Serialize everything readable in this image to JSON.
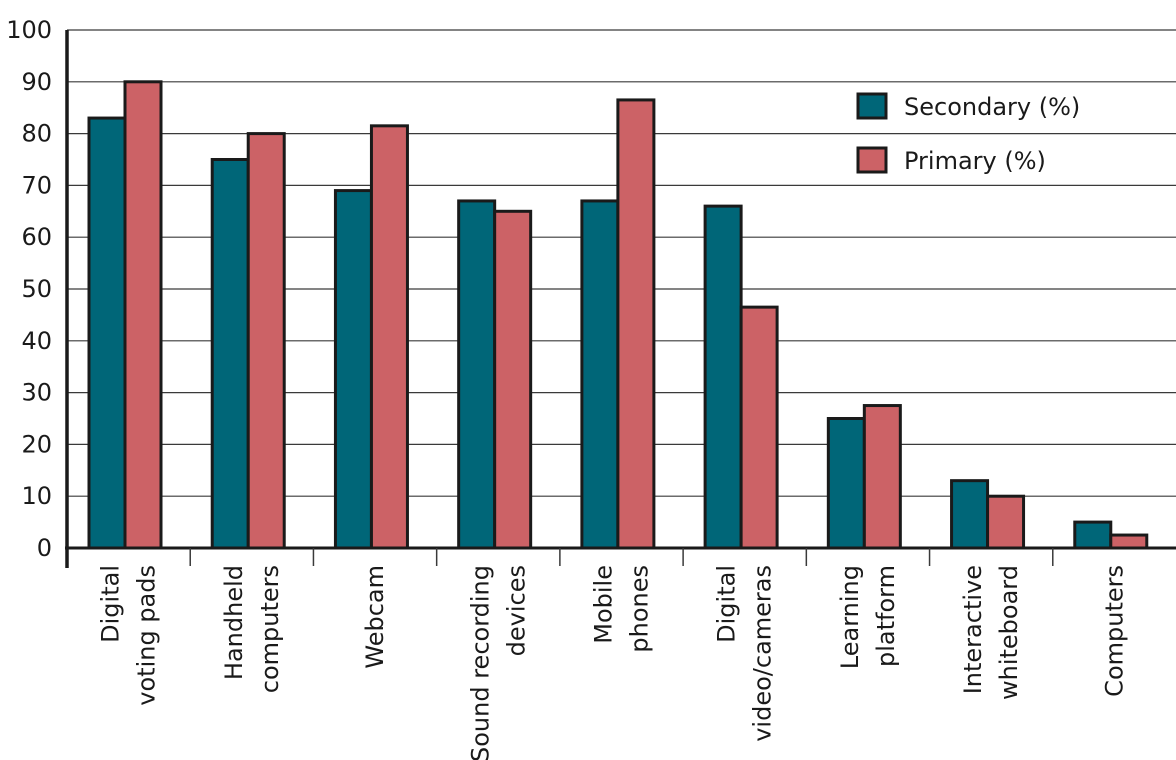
{
  "chart_data": {
    "type": "bar",
    "title": "",
    "xlabel": "",
    "ylabel": "",
    "ylim": [
      0,
      100
    ],
    "yticks": [
      0,
      10,
      20,
      30,
      40,
      50,
      60,
      70,
      80,
      90,
      100
    ],
    "grid": true,
    "legend_position": "top-right",
    "categories": [
      [
        "Digital",
        "voting pads"
      ],
      [
        "Handheld",
        "computers"
      ],
      [
        "Webcam"
      ],
      [
        "Sound recording",
        "devices"
      ],
      [
        "Mobile",
        "phones"
      ],
      [
        "Digital",
        "video/cameras"
      ],
      [
        "Learning",
        "platform"
      ],
      [
        "Interactive",
        "whiteboard"
      ],
      [
        "Computers"
      ]
    ],
    "series": [
      {
        "name": "Secondary (%)",
        "color": "#006678",
        "values": [
          83,
          75,
          69,
          67,
          67,
          66,
          25,
          13,
          5
        ]
      },
      {
        "name": "Primary (%)",
        "color": "#cc6266",
        "values": [
          90,
          80,
          81.5,
          65,
          86.5,
          46.5,
          27.5,
          10,
          2.5
        ]
      }
    ]
  }
}
